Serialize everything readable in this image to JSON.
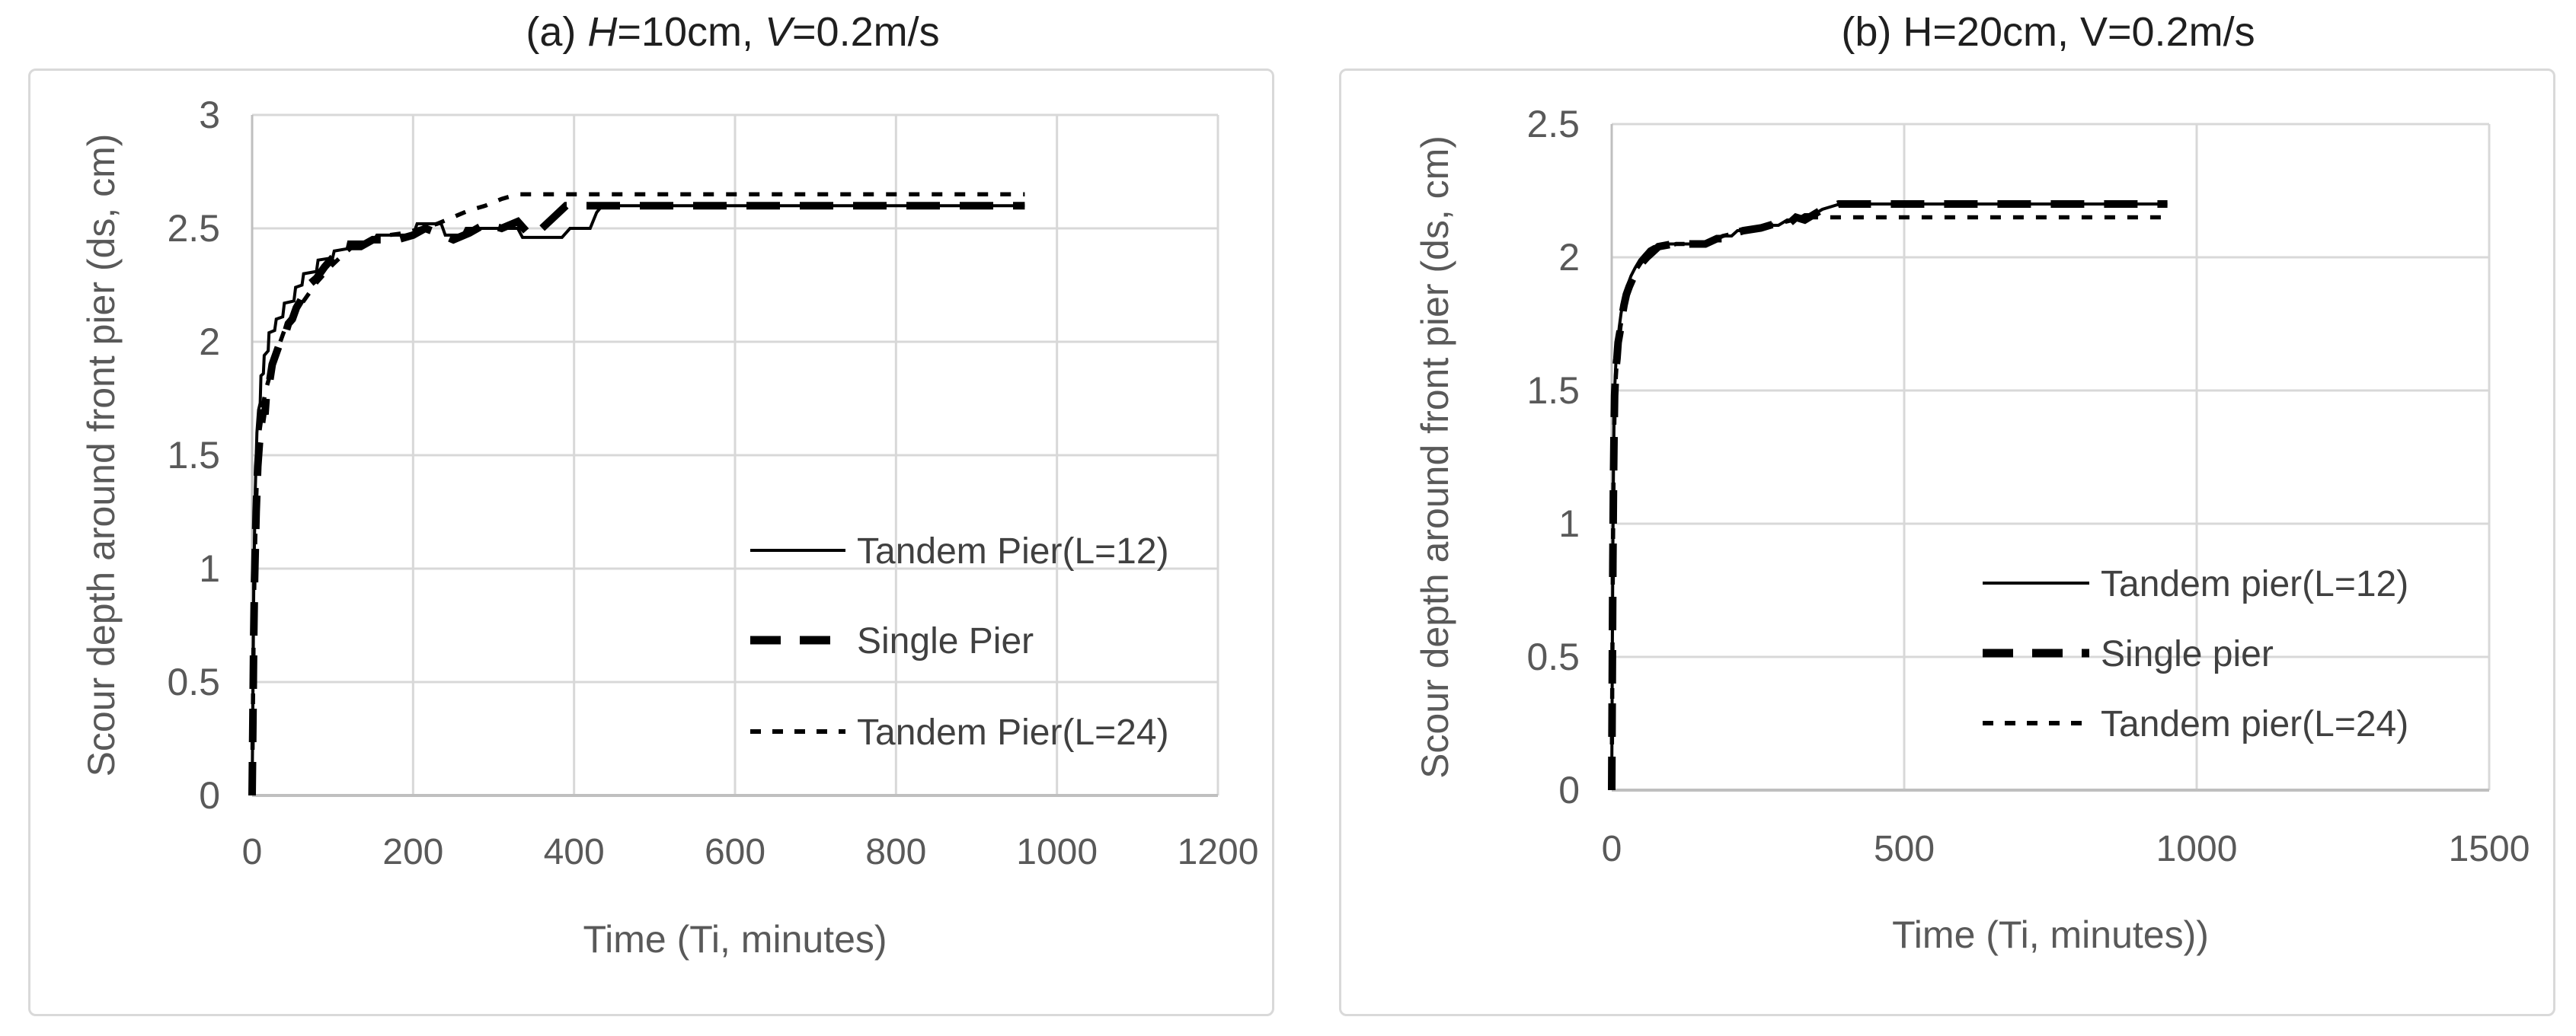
{
  "figure_colors": {
    "series_color": "#000000",
    "gridline_color": "#d8d8d8",
    "axis_line_color": "#bfbfbf",
    "tick_label_color": "#595959",
    "axis_title_color": "#595959",
    "legend_text_color": "#404040",
    "title_color": "#1f1f1f",
    "panel_border_color": "#d9d9d9",
    "background_color": "#ffffff"
  },
  "chart_data": [
    {
      "type": "line",
      "title": "(a) H=10cm, V=0.2m/s",
      "title_segments": [
        {
          "text": "(a) ",
          "italic": false
        },
        {
          "text": "H",
          "italic": true
        },
        {
          "text": "=10cm, ",
          "italic": false
        },
        {
          "text": "V",
          "italic": true
        },
        {
          "text": "=0.2m/s",
          "italic": false
        }
      ],
      "xlabel": "Time (Ti,  minutes)",
      "ylabel": "Scour depth around front pier (ds, cm)",
      "xlim": [
        0,
        1200
      ],
      "ylim": [
        0,
        3
      ],
      "x_ticks": [
        0,
        200,
        400,
        600,
        800,
        1000,
        1200
      ],
      "y_ticks": [
        0,
        0.5,
        1,
        1.5,
        2,
        2.5,
        3
      ],
      "grid": true,
      "legend_position": "inside-right",
      "series": [
        {
          "name": "Tandem Pier(L=12)",
          "style": "solid",
          "points": [
            [
              0,
              0
            ],
            [
              1,
              0.45
            ],
            [
              2,
              0.9
            ],
            [
              3,
              1.15
            ],
            [
              4,
              1.35
            ],
            [
              6,
              1.6
            ],
            [
              8,
              1.7
            ],
            [
              10,
              1.73
            ],
            [
              11,
              1.85
            ],
            [
              14,
              1.86
            ],
            [
              15,
              1.94
            ],
            [
              20,
              1.96
            ],
            [
              21,
              2.04
            ],
            [
              28,
              2.05
            ],
            [
              30,
              2.1
            ],
            [
              38,
              2.11
            ],
            [
              40,
              2.17
            ],
            [
              52,
              2.18
            ],
            [
              54,
              2.24
            ],
            [
              62,
              2.25
            ],
            [
              64,
              2.3
            ],
            [
              80,
              2.31
            ],
            [
              82,
              2.36
            ],
            [
              100,
              2.37
            ],
            [
              102,
              2.4
            ],
            [
              118,
              2.41
            ],
            [
              120,
              2.44
            ],
            [
              150,
              2.44
            ],
            [
              155,
              2.47
            ],
            [
              200,
              2.47
            ],
            [
              205,
              2.52
            ],
            [
              235,
              2.52
            ],
            [
              240,
              2.47
            ],
            [
              262,
              2.47
            ],
            [
              266,
              2.5
            ],
            [
              330,
              2.5
            ],
            [
              336,
              2.46
            ],
            [
              385,
              2.46
            ],
            [
              395,
              2.5
            ],
            [
              420,
              2.5
            ],
            [
              428,
              2.57
            ],
            [
              435,
              2.6
            ],
            [
              960,
              2.6
            ]
          ]
        },
        {
          "name": "Single Pier",
          "style": "dashed",
          "points": [
            [
              0,
              0
            ],
            [
              1,
              0.35
            ],
            [
              2,
              0.7
            ],
            [
              3,
              0.95
            ],
            [
              5,
              1.25
            ],
            [
              7,
              1.45
            ],
            [
              9,
              1.55
            ],
            [
              12,
              1.65
            ],
            [
              14,
              1.7
            ],
            [
              16,
              1.68
            ],
            [
              18,
              1.78
            ],
            [
              22,
              1.83
            ],
            [
              25,
              1.9
            ],
            [
              30,
              1.95
            ],
            [
              35,
              2.0
            ],
            [
              40,
              2.02
            ],
            [
              45,
              2.08
            ],
            [
              50,
              2.1
            ],
            [
              55,
              2.15
            ],
            [
              60,
              2.18
            ],
            [
              70,
              2.25
            ],
            [
              80,
              2.28
            ],
            [
              90,
              2.33
            ],
            [
              100,
              2.37
            ],
            [
              110,
              2.4
            ],
            [
              120,
              2.42
            ],
            [
              135,
              2.42
            ],
            [
              150,
              2.45
            ],
            [
              180,
              2.45
            ],
            [
              200,
              2.47
            ],
            [
              215,
              2.5
            ],
            [
              230,
              2.48
            ],
            [
              250,
              2.45
            ],
            [
              270,
              2.48
            ],
            [
              290,
              2.52
            ],
            [
              310,
              2.5
            ],
            [
              330,
              2.53
            ],
            [
              345,
              2.47
            ],
            [
              360,
              2.5
            ],
            [
              375,
              2.55
            ],
            [
              390,
              2.6
            ],
            [
              960,
              2.6
            ]
          ]
        },
        {
          "name": "Tandem Pier(L=24)",
          "style": "dotted",
          "points": [
            [
              0,
              0
            ],
            [
              1,
              0.4
            ],
            [
              2,
              0.75
            ],
            [
              3,
              1.0
            ],
            [
              5,
              1.3
            ],
            [
              7,
              1.5
            ],
            [
              9,
              1.6
            ],
            [
              12,
              1.68
            ],
            [
              15,
              1.75
            ],
            [
              18,
              1.8
            ],
            [
              22,
              1.85
            ],
            [
              26,
              1.9
            ],
            [
              30,
              1.95
            ],
            [
              35,
              2.0
            ],
            [
              40,
              2.05
            ],
            [
              48,
              2.1
            ],
            [
              56,
              2.14
            ],
            [
              64,
              2.18
            ],
            [
              72,
              2.22
            ],
            [
              80,
              2.26
            ],
            [
              90,
              2.3
            ],
            [
              100,
              2.34
            ],
            [
              112,
              2.38
            ],
            [
              125,
              2.42
            ],
            [
              140,
              2.44
            ],
            [
              155,
              2.46
            ],
            [
              170,
              2.47
            ],
            [
              190,
              2.48
            ],
            [
              210,
              2.5
            ],
            [
              230,
              2.52
            ],
            [
              250,
              2.55
            ],
            [
              270,
              2.58
            ],
            [
              290,
              2.6
            ],
            [
              310,
              2.63
            ],
            [
              330,
              2.65
            ],
            [
              960,
              2.65
            ]
          ]
        }
      ]
    },
    {
      "type": "line",
      "title": "(b) H=20cm, V=0.2m/s",
      "title_segments": [
        {
          "text": "(b) H=20cm, V=0.2m/s",
          "italic": false
        }
      ],
      "xlabel": "Time (Ti, minutes))",
      "ylabel": "Scour depth around front pier (ds, cm)",
      "xlim": [
        0,
        1500
      ],
      "ylim": [
        0,
        2.5
      ],
      "x_ticks": [
        0,
        500,
        1000,
        1500
      ],
      "y_ticks": [
        0,
        0.5,
        1,
        1.5,
        2,
        2.5
      ],
      "grid": true,
      "legend_position": "inside-right",
      "series": [
        {
          "name": "Tandem pier(L=12)",
          "style": "solid",
          "points": [
            [
              0,
              0
            ],
            [
              1,
              0.5
            ],
            [
              2,
              0.9
            ],
            [
              3,
              1.2
            ],
            [
              4,
              1.4
            ],
            [
              5,
              1.5
            ],
            [
              7,
              1.6
            ],
            [
              9,
              1.64
            ],
            [
              11,
              1.7
            ],
            [
              13,
              1.74
            ],
            [
              16,
              1.79
            ],
            [
              20,
              1.84
            ],
            [
              24,
              1.87
            ],
            [
              28,
              1.9
            ],
            [
              33,
              1.93
            ],
            [
              40,
              1.96
            ],
            [
              48,
              1.99
            ],
            [
              56,
              2.01
            ],
            [
              64,
              2.03
            ],
            [
              72,
              2.04
            ],
            [
              95,
              2.05
            ],
            [
              150,
              2.05
            ],
            [
              170,
              2.06
            ],
            [
              190,
              2.08
            ],
            [
              205,
              2.08
            ],
            [
              215,
              2.1
            ],
            [
              245,
              2.1
            ],
            [
              260,
              2.12
            ],
            [
              285,
              2.12
            ],
            [
              300,
              2.14
            ],
            [
              315,
              2.14
            ],
            [
              330,
              2.16
            ],
            [
              345,
              2.16
            ],
            [
              360,
              2.18
            ],
            [
              375,
              2.19
            ],
            [
              390,
              2.2
            ],
            [
              950,
              2.2
            ]
          ]
        },
        {
          "name": "Single pier",
          "style": "dashed",
          "points": [
            [
              0,
              0
            ],
            [
              1,
              0.45
            ],
            [
              2,
              0.85
            ],
            [
              3,
              1.15
            ],
            [
              4,
              1.35
            ],
            [
              5,
              1.48
            ],
            [
              7,
              1.58
            ],
            [
              9,
              1.62
            ],
            [
              11,
              1.68
            ],
            [
              14,
              1.72
            ],
            [
              17,
              1.77
            ],
            [
              21,
              1.82
            ],
            [
              25,
              1.86
            ],
            [
              30,
              1.89
            ],
            [
              36,
              1.92
            ],
            [
              43,
              1.95
            ],
            [
              52,
              1.98
            ],
            [
              60,
              2.0
            ],
            [
              70,
              2.02
            ],
            [
              80,
              2.04
            ],
            [
              105,
              2.05
            ],
            [
              160,
              2.05
            ],
            [
              180,
              2.07
            ],
            [
              195,
              2.07
            ],
            [
              210,
              2.09
            ],
            [
              225,
              2.1
            ],
            [
              255,
              2.11
            ],
            [
              270,
              2.12
            ],
            [
              285,
              2.13
            ],
            [
              300,
              2.12
            ],
            [
              315,
              2.15
            ],
            [
              330,
              2.14
            ],
            [
              345,
              2.16
            ],
            [
              360,
              2.18
            ],
            [
              375,
              2.19
            ],
            [
              388,
              2.2
            ],
            [
              950,
              2.2
            ]
          ]
        },
        {
          "name": "Tandem pier(L=24)",
          "style": "dotted",
          "points": [
            [
              0,
              0
            ],
            [
              1,
              0.45
            ],
            [
              2,
              0.85
            ],
            [
              3,
              1.15
            ],
            [
              5,
              1.45
            ],
            [
              7,
              1.55
            ],
            [
              9,
              1.62
            ],
            [
              12,
              1.68
            ],
            [
              15,
              1.74
            ],
            [
              19,
              1.79
            ],
            [
              23,
              1.84
            ],
            [
              28,
              1.88
            ],
            [
              34,
              1.92
            ],
            [
              41,
              1.95
            ],
            [
              50,
              1.98
            ],
            [
              60,
              2.0
            ],
            [
              70,
              2.02
            ],
            [
              82,
              2.04
            ],
            [
              95,
              2.04
            ],
            [
              110,
              2.05
            ],
            [
              150,
              2.05
            ],
            [
              170,
              2.06
            ],
            [
              190,
              2.08
            ],
            [
              210,
              2.09
            ],
            [
              230,
              2.1
            ],
            [
              250,
              2.11
            ],
            [
              270,
              2.12
            ],
            [
              290,
              2.13
            ],
            [
              310,
              2.14
            ],
            [
              330,
              2.15
            ],
            [
              370,
              2.15
            ],
            [
              955,
              2.15
            ]
          ]
        }
      ]
    }
  ]
}
